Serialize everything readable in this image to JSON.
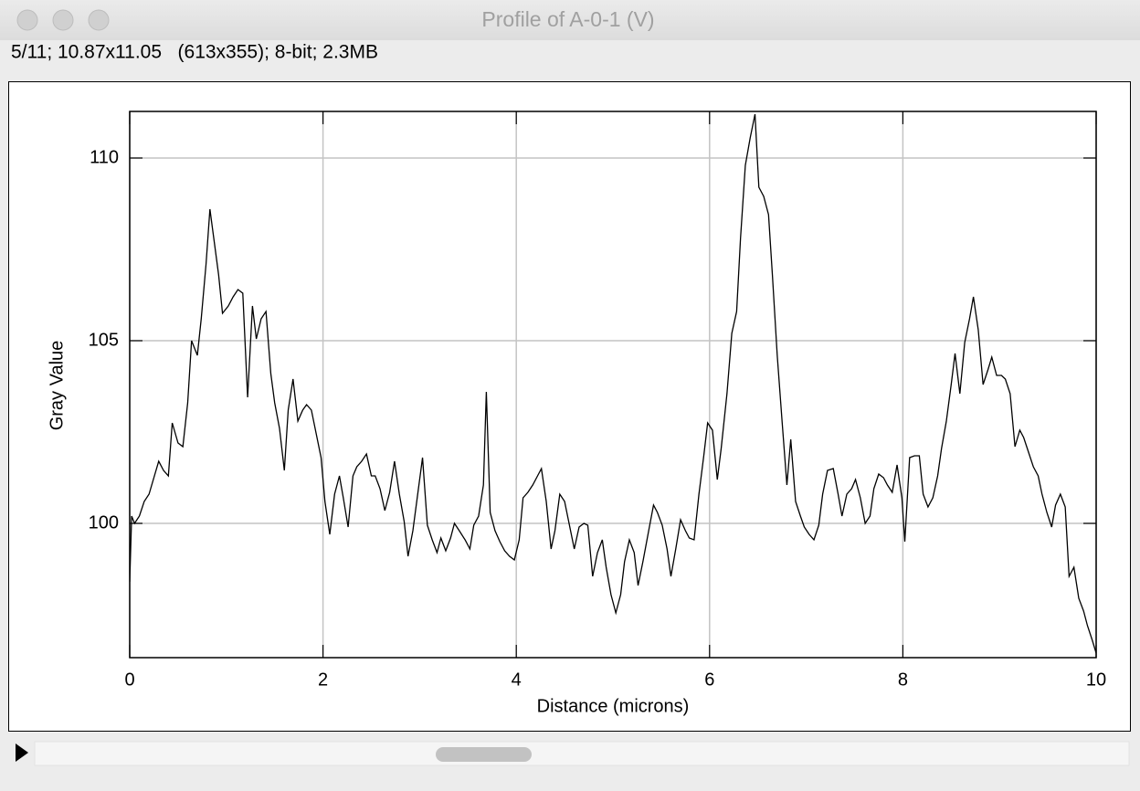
{
  "window": {
    "title": "Profile of A-0-1 (V)",
    "info": "5/11; 10.87x11.05   (613x355); 8-bit; 2.3MB"
  },
  "chart_data": {
    "type": "line",
    "xlabel": "Distance (microns)",
    "ylabel": "Gray Value",
    "color": "#000000",
    "grid": true,
    "xlim": [
      0,
      10
    ],
    "xticks": [
      0,
      2,
      4,
      6,
      8,
      10
    ],
    "ylim": [
      96.325,
      111.275
    ],
    "yticks": [
      100,
      105,
      110
    ],
    "x": [
      0,
      0.02,
      0.05,
      0.1,
      0.15,
      0.2,
      0.3,
      0.35,
      0.4,
      0.44,
      0.5,
      0.55,
      0.6,
      0.64,
      0.7,
      0.74,
      0.79,
      0.83,
      0.87,
      0.92,
      0.96,
      1.02,
      1.07,
      1.12,
      1.17,
      1.22,
      1.27,
      1.31,
      1.36,
      1.41,
      1.46,
      1.5,
      1.55,
      1.6,
      1.64,
      1.69,
      1.74,
      1.79,
      1.83,
      1.88,
      1.93,
      1.98,
      2.02,
      2.07,
      2.12,
      2.17,
      2.21,
      2.26,
      2.31,
      2.35,
      2.4,
      2.45,
      2.5,
      2.54,
      2.59,
      2.64,
      2.69,
      2.74,
      2.79,
      2.84,
      2.88,
      2.93,
      2.98,
      3.03,
      3.08,
      3.13,
      3.18,
      3.22,
      3.27,
      3.32,
      3.36,
      3.41,
      3.47,
      3.52,
      3.56,
      3.61,
      3.66,
      3.69,
      3.73,
      3.78,
      3.83,
      3.88,
      3.93,
      3.98,
      4.03,
      4.07,
      4.12,
      4.17,
      4.22,
      4.26,
      4.31,
      4.36,
      4.4,
      4.45,
      4.5,
      4.55,
      4.6,
      4.65,
      4.7,
      4.74,
      4.79,
      4.84,
      4.89,
      4.93,
      4.98,
      5.03,
      5.08,
      5.12,
      5.17,
      5.22,
      5.26,
      5.31,
      5.37,
      5.42,
      5.46,
      5.51,
      5.56,
      5.6,
      5.65,
      5.7,
      5.75,
      5.79,
      5.84,
      5.89,
      5.94,
      5.98,
      6.03,
      6.08,
      6.12,
      6.18,
      6.23,
      6.28,
      6.32,
      6.37,
      6.42,
      6.47,
      6.51,
      6.56,
      6.61,
      6.65,
      6.7,
      6.75,
      6.8,
      6.84,
      6.89,
      6.94,
      6.98,
      7.03,
      7.08,
      7.13,
      7.17,
      7.22,
      7.28,
      7.33,
      7.37,
      7.42,
      7.47,
      7.51,
      7.56,
      7.61,
      7.66,
      7.7,
      7.75,
      7.8,
      7.84,
      7.89,
      7.94,
      7.99,
      8.02,
      8.07,
      8.12,
      8.17,
      8.21,
      8.26,
      8.31,
      8.36,
      8.4,
      8.45,
      8.5,
      8.54,
      8.59,
      8.64,
      8.69,
      8.73,
      8.78,
      8.83,
      8.88,
      8.92,
      8.97,
      9.02,
      9.06,
      9.11,
      9.16,
      9.21,
      9.25,
      9.3,
      9.35,
      9.4,
      9.44,
      9.49,
      9.54,
      9.58,
      9.63,
      9.68,
      9.72,
      9.77,
      9.82,
      9.87,
      9.91,
      9.96,
      10.0
    ],
    "values": [
      98.4,
      100.2,
      100.0,
      100.2,
      100.6,
      100.8,
      101.7,
      101.45,
      101.3,
      102.75,
      102.2,
      102.1,
      103.3,
      105.0,
      104.6,
      105.6,
      107.1,
      108.6,
      107.8,
      106.8,
      105.75,
      105.95,
      106.2,
      106.4,
      106.3,
      103.45,
      105.95,
      105.05,
      105.6,
      105.8,
      104.1,
      103.3,
      102.6,
      101.45,
      103.1,
      103.95,
      102.8,
      103.1,
      103.25,
      103.1,
      102.45,
      101.8,
      100.6,
      99.7,
      100.8,
      101.3,
      100.7,
      99.9,
      101.3,
      101.55,
      101.7,
      101.9,
      101.3,
      101.3,
      100.95,
      100.35,
      100.85,
      101.7,
      100.8,
      100.05,
      99.1,
      99.8,
      100.8,
      101.8,
      99.95,
      99.55,
      99.2,
      99.6,
      99.25,
      99.6,
      100.0,
      99.8,
      99.55,
      99.3,
      99.95,
      100.2,
      101.05,
      103.6,
      100.3,
      99.8,
      99.5,
      99.25,
      99.1,
      99.0,
      99.55,
      100.7,
      100.85,
      101.05,
      101.3,
      101.5,
      100.6,
      99.3,
      99.8,
      100.8,
      100.6,
      99.95,
      99.3,
      99.9,
      100.0,
      99.95,
      98.55,
      99.2,
      99.55,
      98.8,
      98.05,
      97.55,
      98.05,
      98.95,
      99.55,
      99.2,
      98.3,
      98.95,
      99.8,
      100.5,
      100.3,
      99.95,
      99.3,
      98.55,
      99.3,
      100.1,
      99.8,
      99.6,
      99.55,
      100.8,
      101.85,
      102.75,
      102.55,
      101.2,
      102.05,
      103.55,
      105.2,
      105.8,
      107.8,
      109.8,
      110.55,
      111.2,
      109.2,
      108.95,
      108.45,
      106.8,
      104.6,
      102.8,
      101.05,
      102.3,
      100.6,
      100.2,
      99.9,
      99.7,
      99.55,
      99.95,
      100.8,
      101.45,
      101.5,
      100.8,
      100.2,
      100.8,
      100.95,
      101.2,
      100.7,
      100.0,
      100.2,
      100.95,
      101.35,
      101.25,
      101.05,
      100.85,
      101.6,
      100.7,
      99.5,
      101.8,
      101.85,
      101.85,
      100.8,
      100.45,
      100.7,
      101.3,
      102.05,
      102.8,
      103.8,
      104.65,
      103.55,
      104.95,
      105.6,
      106.2,
      105.3,
      103.8,
      104.2,
      104.55,
      104.05,
      104.05,
      103.95,
      103.55,
      102.1,
      102.55,
      102.35,
      101.95,
      101.55,
      101.3,
      100.8,
      100.3,
      99.9,
      100.5,
      100.8,
      100.45,
      98.55,
      98.8,
      97.95,
      97.6,
      97.2,
      96.8,
      96.45
    ]
  }
}
